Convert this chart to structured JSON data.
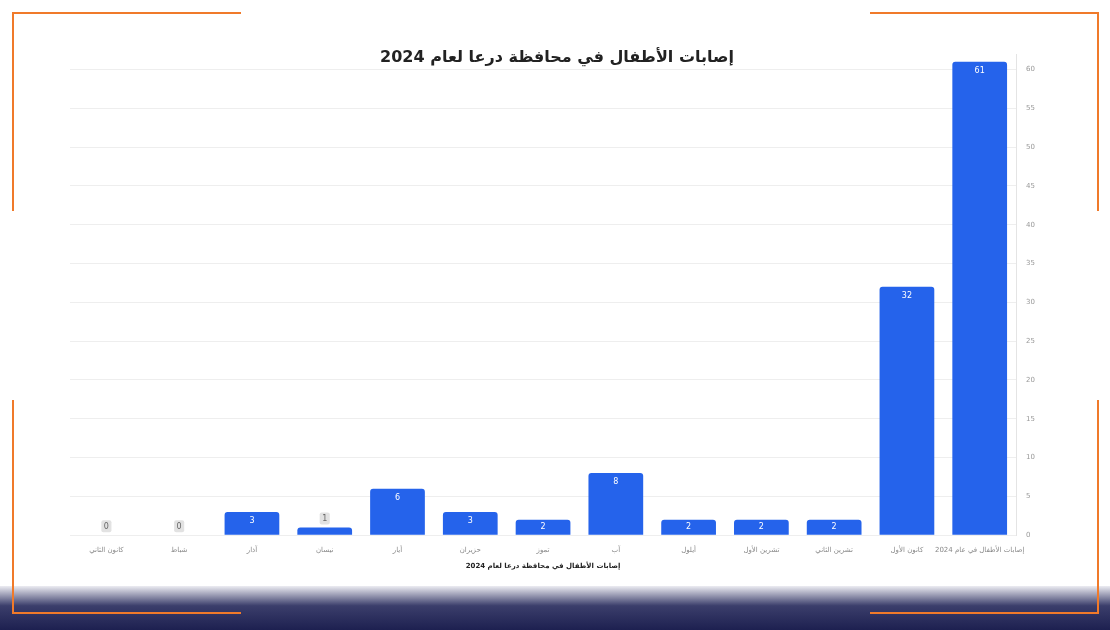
{
  "chart_data": {
    "type": "bar",
    "title": "إصابات الأطفال في محافظة درعا لعام 2024",
    "xlabel": "إصابات الأطفال في محافظة درعا لعام 2024",
    "categories": [
      "كانون الثاني",
      "شباط",
      "آذار",
      "نيسان",
      "أيار",
      "حزيران",
      "تموز",
      "آب",
      "أيلول",
      "تشرين الأول",
      "تشرين الثاني",
      "كانون الأول",
      "إصابات الأطفال في عام 2024"
    ],
    "values": [
      0,
      0,
      3,
      1,
      6,
      3,
      2,
      8,
      2,
      2,
      2,
      32,
      61
    ],
    "color": "#2563eb",
    "ylim": [
      0,
      62
    ],
    "yticks": [
      0,
      5,
      10,
      15,
      20,
      25,
      30,
      35,
      40,
      45,
      50,
      55,
      60
    ],
    "grid": "y",
    "data_labels": true
  }
}
